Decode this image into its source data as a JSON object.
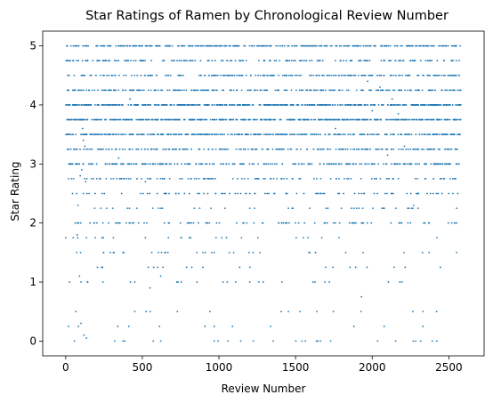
{
  "chart_data": {
    "type": "scatter",
    "title": "Star Ratings of Ramen by Chronological Review Number",
    "xlabel": "Review Number",
    "ylabel": "Star Rating",
    "xlim": [
      -150,
      2730
    ],
    "ylim": [
      -0.25,
      5.25
    ],
    "xticks": [
      0,
      500,
      1000,
      1500,
      2000,
      2500
    ],
    "yticks": [
      0,
      1,
      2,
      3,
      4,
      5
    ],
    "grid": false,
    "legend": "none",
    "marker_color": "#1f77b4",
    "x_count": 2580,
    "rating_levels": [
      {
        "rating": 5.0,
        "points": 330
      },
      {
        "rating": 4.75,
        "points": 170
      },
      {
        "rating": 4.5,
        "points": 240
      },
      {
        "rating": 4.25,
        "points": 240
      },
      {
        "rating": 4.0,
        "points": 430
      },
      {
        "rating": 3.75,
        "points": 440
      },
      {
        "rating": 3.5,
        "points": 370
      },
      {
        "rating": 3.25,
        "points": 230
      },
      {
        "rating": 3.0,
        "points": 230
      },
      {
        "rating": 2.75,
        "points": 120
      },
      {
        "rating": 2.5,
        "points": 90
      },
      {
        "rating": 2.25,
        "points": 40
      },
      {
        "rating": 2.0,
        "points": 90
      },
      {
        "rating": 1.75,
        "points": 25
      },
      {
        "rating": 1.5,
        "points": 35
      },
      {
        "rating": 1.25,
        "points": 20
      },
      {
        "rating": 1.0,
        "points": 25
      },
      {
        "rating": 0.5,
        "points": 15
      },
      {
        "rating": 0.25,
        "points": 12
      },
      {
        "rating": 0.0,
        "points": 26
      }
    ],
    "odd_ratings": [
      {
        "x": 80,
        "y": 2.3
      },
      {
        "x": 95,
        "y": 2.8
      },
      {
        "x": 105,
        "y": 2.9
      },
      {
        "x": 110,
        "y": 3.6
      },
      {
        "x": 115,
        "y": 3.4
      },
      {
        "x": 125,
        "y": 3.3
      },
      {
        "x": 130,
        "y": 2.7
      },
      {
        "x": 90,
        "y": 1.1
      },
      {
        "x": 75,
        "y": 1.8
      },
      {
        "x": 100,
        "y": 0.3
      },
      {
        "x": 120,
        "y": 0.1
      },
      {
        "x": 135,
        "y": 0.05
      },
      {
        "x": 345,
        "y": 3.1
      },
      {
        "x": 420,
        "y": 4.1
      },
      {
        "x": 520,
        "y": 2.7
      },
      {
        "x": 550,
        "y": 0.9
      },
      {
        "x": 620,
        "y": 1.1
      },
      {
        "x": 1970,
        "y": 4.4
      },
      {
        "x": 2050,
        "y": 4.3
      },
      {
        "x": 2210,
        "y": 3.3
      },
      {
        "x": 2270,
        "y": 2.3
      },
      {
        "x": 2130,
        "y": 4.1
      },
      {
        "x": 2000,
        "y": 3.9
      },
      {
        "x": 1760,
        "y": 3.6
      },
      {
        "x": 1930,
        "y": 0.75
      },
      {
        "x": 2170,
        "y": 3.85
      },
      {
        "x": 2100,
        "y": 3.15
      }
    ]
  }
}
